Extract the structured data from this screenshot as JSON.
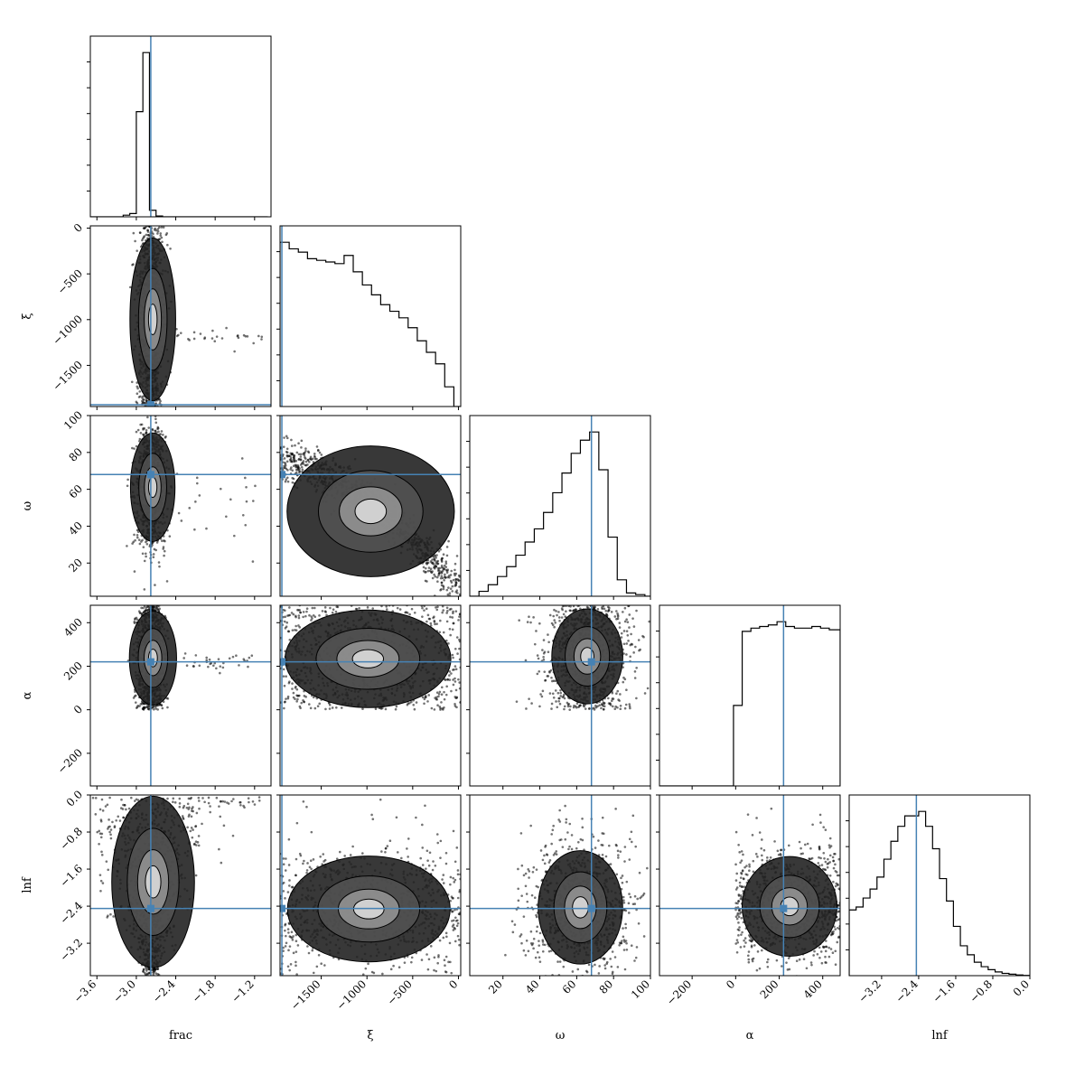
{
  "chart_data": {
    "type": "corner",
    "parameters": [
      {
        "key": "frac",
        "label": "frac",
        "range": [
          -3.7,
          -0.95
        ],
        "ticks": [
          -3.6,
          -3.0,
          -2.4,
          -1.8,
          -1.2
        ],
        "tick_labels": [
          "−3.6",
          "−3.0",
          "−2.4",
          "−1.8",
          "−1.2"
        ],
        "truth": -2.78
      },
      {
        "key": "xi",
        "label": "ξ",
        "range": [
          -1950,
          25
        ],
        "ticks": [
          -1500,
          -1000,
          -500,
          0
        ],
        "tick_labels": [
          "−1500",
          "−1000",
          "−500",
          "0"
        ],
        "truth": -1930
      },
      {
        "key": "omega",
        "label": "ω",
        "range": [
          2,
          100
        ],
        "ticks": [
          20,
          40,
          60,
          80,
          100
        ],
        "tick_labels": [
          "20",
          "40",
          "60",
          "80",
          "100"
        ],
        "truth": 68
      },
      {
        "key": "alpha",
        "label": "α",
        "range": [
          -350,
          480
        ],
        "ticks": [
          -200,
          0,
          200,
          400
        ],
        "tick_labels": [
          "−200",
          "0",
          "200",
          "400"
        ],
        "truth": 220
      },
      {
        "key": "lnf",
        "label": "lnf",
        "range": [
          -3.9,
          0.0
        ],
        "ticks": [
          -3.2,
          -2.4,
          -1.6,
          -0.8,
          0.0
        ],
        "tick_labels": [
          "−3.2",
          "−2.4",
          "−1.6",
          "−0.8",
          "0.0"
        ],
        "truth": -2.45
      }
    ],
    "truth_color": "#4682b4",
    "histograms": {
      "frac": {
        "edges": [
          -3.7,
          -3.6,
          -3.5,
          -3.4,
          -3.3,
          -3.2,
          -3.1,
          -3.0,
          -2.9,
          -2.8,
          -2.7,
          -2.6,
          -2.5,
          -2.4,
          -2.3,
          -2.2,
          -2.1,
          -2.0,
          -1.9,
          -1.8,
          -1.7,
          -1.6,
          -1.5,
          -1.4,
          -1.3,
          -1.2,
          -1.1,
          -1.0
        ],
        "counts": [
          0,
          0,
          0,
          0,
          0,
          0.01,
          0.02,
          0.64,
          1.0,
          0.04,
          0.005,
          0,
          0,
          0,
          0,
          0,
          0,
          0,
          0,
          0,
          0,
          0,
          0,
          0,
          0,
          0,
          0
        ]
      },
      "xi": {
        "edges": [
          -1950,
          -1850,
          -1750,
          -1650,
          -1550,
          -1450,
          -1350,
          -1250,
          -1150,
          -1050,
          -950,
          -850,
          -750,
          -650,
          -550,
          -450,
          -350,
          -250,
          -150,
          -50,
          25
        ],
        "counts": [
          1.0,
          0.96,
          0.94,
          0.9,
          0.89,
          0.88,
          0.87,
          0.92,
          0.82,
          0.74,
          0.68,
          0.62,
          0.58,
          0.54,
          0.48,
          0.4,
          0.33,
          0.26,
          0.12,
          0.0
        ]
      },
      "omega": {
        "edges": [
          2,
          7,
          12,
          17,
          22,
          27,
          32,
          37,
          42,
          47,
          52,
          57,
          62,
          67,
          72,
          77,
          82,
          87,
          92,
          97,
          100
        ],
        "counts": [
          0.0,
          0.03,
          0.07,
          0.12,
          0.18,
          0.25,
          0.33,
          0.41,
          0.51,
          0.63,
          0.75,
          0.87,
          0.95,
          1.0,
          0.77,
          0.36,
          0.1,
          0.02,
          0.01,
          0.0
        ]
      },
      "alpha": {
        "edges": [
          -350,
          -300,
          -250,
          -200,
          -150,
          -100,
          -50,
          -10,
          30,
          70,
          110,
          150,
          190,
          230,
          270,
          310,
          350,
          390,
          430,
          480
        ],
        "counts": [
          0,
          0,
          0,
          0,
          0,
          0,
          0,
          0.5,
          0.96,
          0.98,
          0.99,
          1.0,
          1.02,
          0.99,
          0.98,
          0.98,
          0.99,
          0.98,
          0.97
        ]
      },
      "lnf": {
        "edges": [
          -3.9,
          -3.75,
          -3.6,
          -3.45,
          -3.3,
          -3.15,
          -3.0,
          -2.85,
          -2.7,
          -2.55,
          -2.4,
          -2.25,
          -2.1,
          -1.95,
          -1.8,
          -1.65,
          -1.5,
          -1.35,
          -1.2,
          -1.05,
          -0.9,
          -0.75,
          -0.6,
          -0.45,
          -0.3,
          -0.15,
          0.0
        ],
        "counts": [
          0.44,
          0.46,
          0.52,
          0.58,
          0.66,
          0.78,
          0.9,
          1.0,
          1.07,
          1.07,
          1.1,
          1.0,
          0.85,
          0.65,
          0.5,
          0.33,
          0.2,
          0.14,
          0.09,
          0.06,
          0.04,
          0.025,
          0.015,
          0.01,
          0.005,
          0.002
        ]
      }
    }
  }
}
